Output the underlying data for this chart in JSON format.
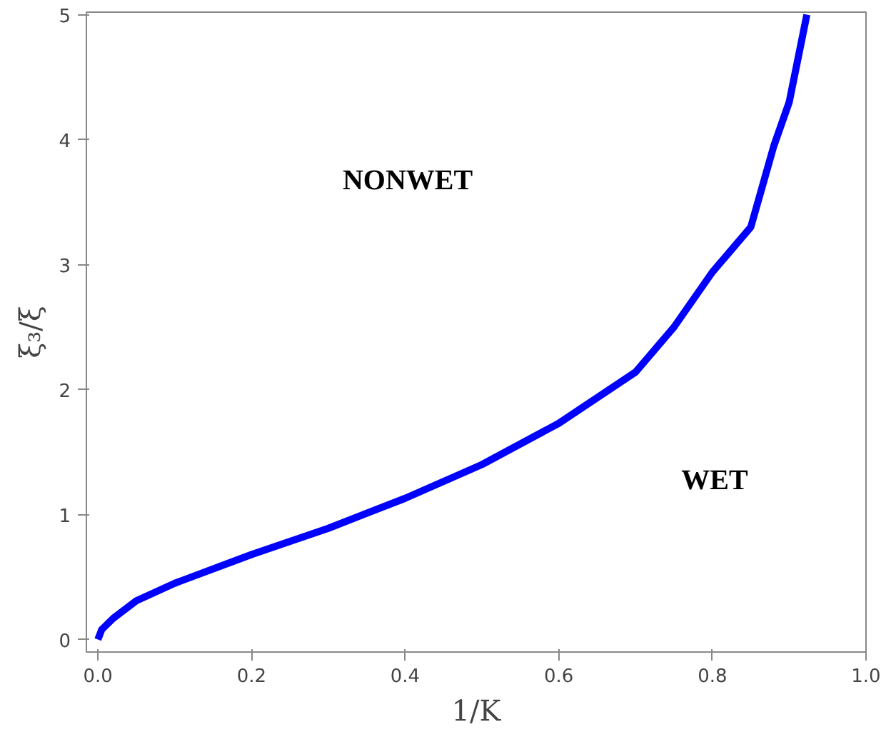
{
  "chart_data": {
    "type": "line",
    "xlabel": "1/K",
    "ylabel": "ξ₃/ξ",
    "x": [
      0.0,
      0.005,
      0.02,
      0.05,
      0.1,
      0.2,
      0.3,
      0.4,
      0.5,
      0.6,
      0.7,
      0.75,
      0.8,
      0.85,
      0.88,
      0.9,
      0.923
    ],
    "series": [
      {
        "color": "#0000ff",
        "values": [
          0.0,
          0.08,
          0.17,
          0.31,
          0.45,
          0.68,
          0.89,
          1.13,
          1.4,
          1.73,
          2.14,
          2.5,
          2.94,
          3.3,
          3.95,
          4.3,
          5.0
        ]
      }
    ],
    "xlim": [
      -0.015,
      1.0
    ],
    "ylim": [
      -0.1,
      5.02
    ],
    "xticks": [
      {
        "value": 0,
        "label": "0.0"
      },
      0.2,
      0.4,
      0.6,
      0.8,
      {
        "value": 1,
        "label": "1.0"
      }
    ],
    "yticks": [
      0,
      1,
      2,
      3,
      4,
      5
    ],
    "annotations": [
      "NONWET",
      "WET"
    ],
    "grid": false,
    "marker": "none",
    "line_style": "solid"
  }
}
